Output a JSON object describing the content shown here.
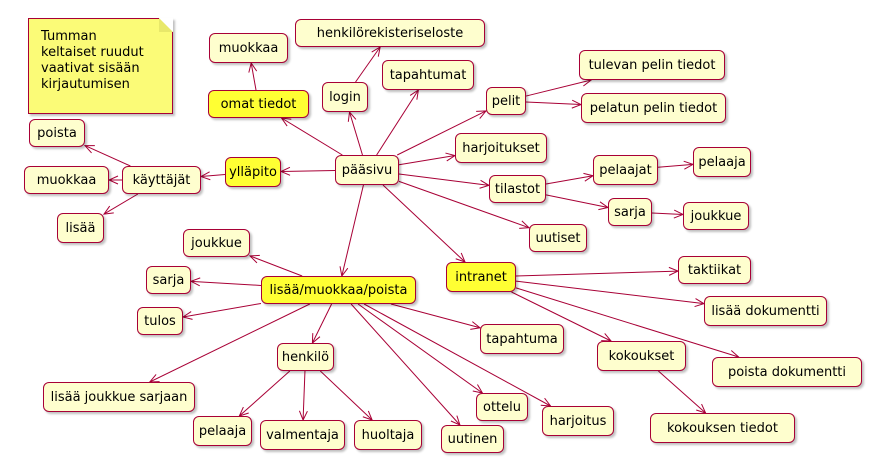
{
  "note": {
    "lines": [
      "Tumman",
      "keltaiset ruudut",
      "vaativat sisään",
      "kirjautumisen"
    ]
  },
  "nodes": {
    "paasivu": "pääsivu",
    "login": "login",
    "henkilorekisteriseloste": "henkilörekisteriseloste",
    "tapahtumat": "tapahtumat",
    "pelit": "pelit",
    "tulevan_pelin_tiedot": "tulevan pelin tiedot",
    "pelatun_pelin_tiedot": "pelatun pelin tiedot",
    "harjoitukset": "harjoitukset",
    "tilastot": "tilastot",
    "pelaajat": "pelaajat",
    "pelaaja_tilasto": "pelaaja",
    "sarja_tilasto": "sarja",
    "joukkue_tilasto": "joukkue",
    "uutiset": "uutiset",
    "omat_tiedot": "omat tiedot",
    "muokkaa_omat": "muokkaa",
    "yllapito": "ylläpito",
    "kayttajat": "käyttäjät",
    "poista_kayttaja": "poista",
    "muokkaa_kayttaja": "muokkaa",
    "lisaa_kayttaja": "lisää",
    "lisaa_muokkaa_poista": "lisää/muokkaa/poista",
    "joukkue": "joukkue",
    "sarja": "sarja",
    "tulos": "tulos",
    "lisaa_joukkue_sarjaan": "lisää joukkue sarjaan",
    "henkilo": "henkilö",
    "pelaaja": "pelaaja",
    "valmentaja": "valmentaja",
    "huoltaja": "huoltaja",
    "uutinen": "uutinen",
    "ottelu": "ottelu",
    "harjoitus": "harjoitus",
    "tapahtuma": "tapahtuma",
    "intranet": "intranet",
    "taktiikat": "taktiikat",
    "lisaa_dokumentti": "lisää dokumentti",
    "poista_dokumentti": "poista dokumentti",
    "kokoukset": "kokoukset",
    "kokouksen_tiedot": "kokouksen tiedot"
  },
  "styles": {
    "node_fill": "#fefece",
    "login_fill": "#ffff33",
    "border": "#a80036",
    "edge": "#a80036",
    "note_fill": "#fbfb77"
  }
}
